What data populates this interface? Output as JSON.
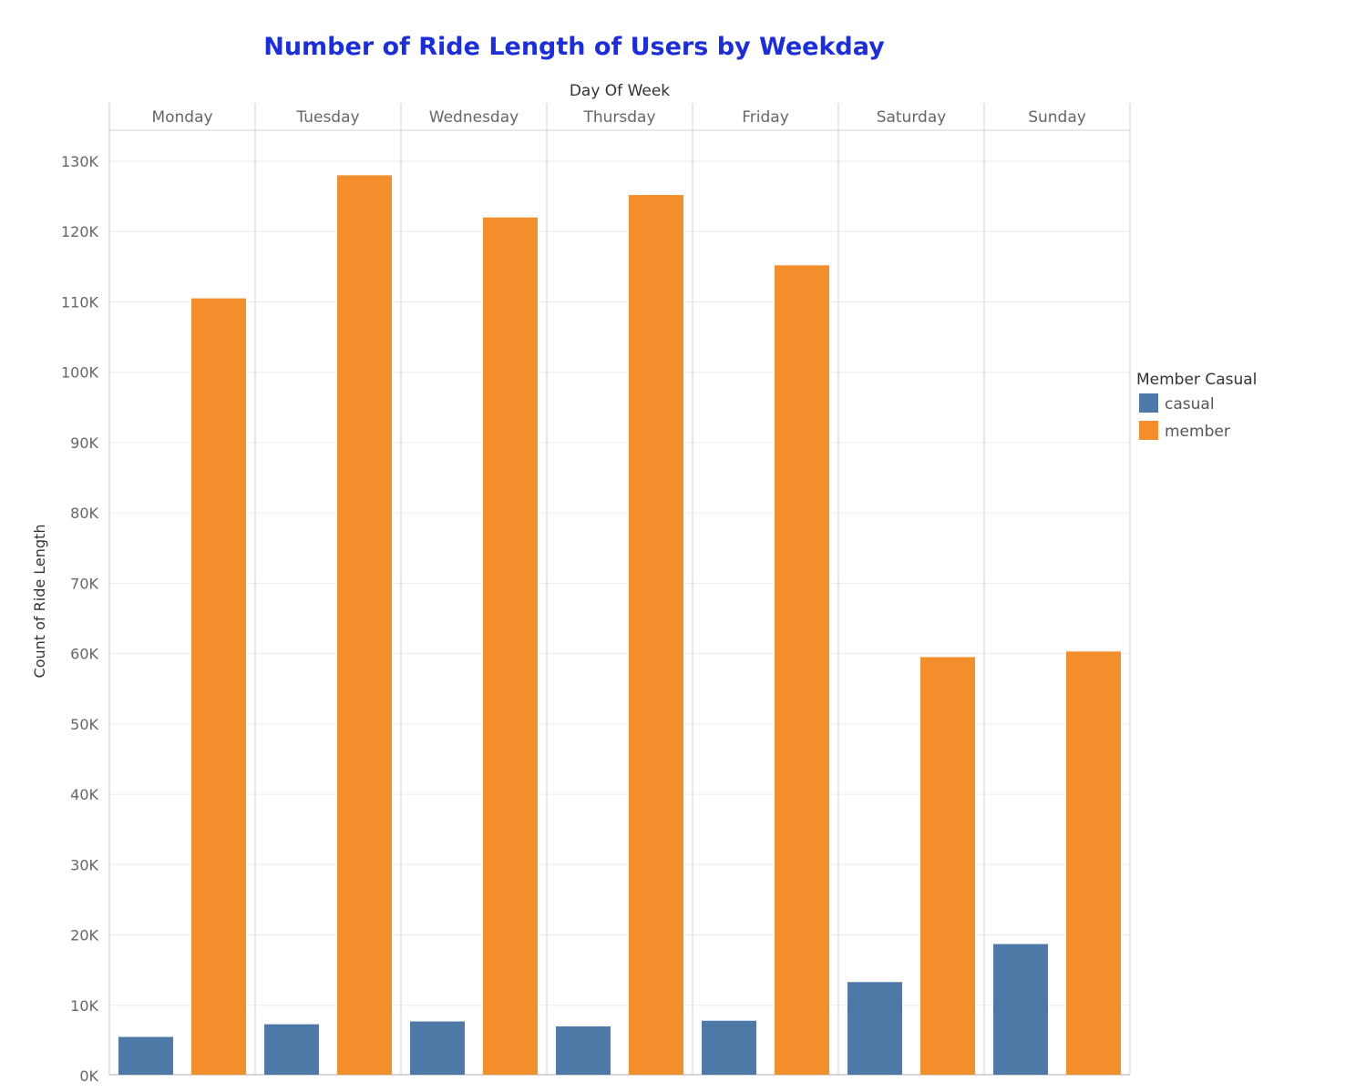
{
  "chart_data": {
    "type": "bar",
    "title": "Number of Ride Length of Users by Weekday",
    "column_header": "Day Of Week",
    "ylabel": "Count of Ride Length",
    "categories": [
      "Monday",
      "Tuesday",
      "Wednesday",
      "Thursday",
      "Friday",
      "Saturday",
      "Sunday"
    ],
    "series": [
      {
        "name": "casual",
        "color": "#4e79a7",
        "values": [
          5500,
          7300,
          7700,
          7000,
          7800,
          13300,
          18700
        ]
      },
      {
        "name": "member",
        "color": "#f28e2b",
        "values": [
          110500,
          128000,
          122000,
          125200,
          115200,
          59500,
          60300
        ]
      }
    ],
    "ylim": [
      0,
      130000
    ],
    "yticks": [
      0,
      10000,
      20000,
      30000,
      40000,
      50000,
      60000,
      70000,
      80000,
      90000,
      100000,
      110000,
      120000,
      130000
    ],
    "ytick_labels": [
      "0K",
      "10K",
      "20K",
      "30K",
      "40K",
      "50K",
      "60K",
      "70K",
      "80K",
      "90K",
      "100K",
      "110K",
      "120K",
      "130K"
    ],
    "legend": {
      "title": "Member Casual",
      "placement": "right"
    },
    "grid": true
  }
}
